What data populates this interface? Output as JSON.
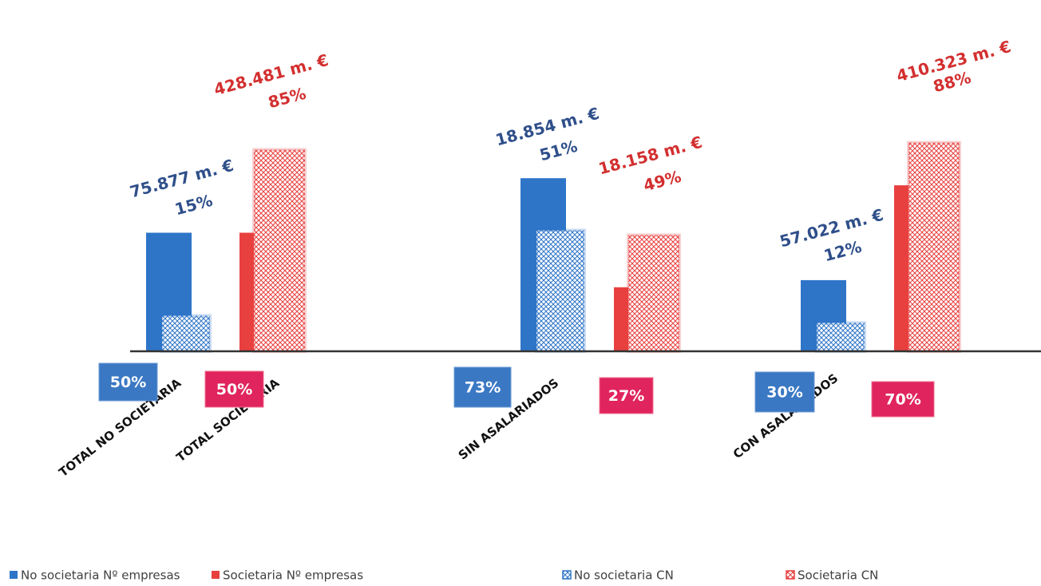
{
  "chart_data": {
    "type": "bar",
    "categories": [
      [
        "TOTAL NO SOCIETARIA",
        "TOTAL SOCIETARIA"
      ],
      [
        "SIN ASALARIADOS"
      ],
      [
        "CON ASALARIADOS"
      ]
    ],
    "series": [
      {
        "name": "No societaria Nº empresas",
        "color": "#2e75c8",
        "pattern": "solid",
        "values": [
          50,
          73,
          30
        ],
        "value_labels": [
          "50%",
          "73%",
          "30%"
        ]
      },
      {
        "name": "Societaria Nº empresas",
        "color": "#e8403f",
        "pattern": "solid",
        "values": [
          50,
          27,
          70
        ],
        "value_labels": [
          "50%",
          "27%",
          "70%"
        ]
      },
      {
        "name": "No societaria CN",
        "color": "#2e75c8",
        "pattern": "crosshatch",
        "values": [
          15,
          51,
          12
        ],
        "value_labels": [
          "15%",
          "51%",
          "12%"
        ],
        "amount_labels": [
          "75.877 m. €",
          "18.854 m. €",
          "57.022 m. €"
        ]
      },
      {
        "name": "Societaria CN",
        "color": "#e8403f",
        "pattern": "crosshatch",
        "values": [
          85,
          49,
          88
        ],
        "value_labels": [
          "85%",
          "49%",
          "88%"
        ],
        "amount_labels": [
          "428.481 m. €",
          "18.158 m. €",
          "410.323 m. €"
        ]
      }
    ]
  }
}
